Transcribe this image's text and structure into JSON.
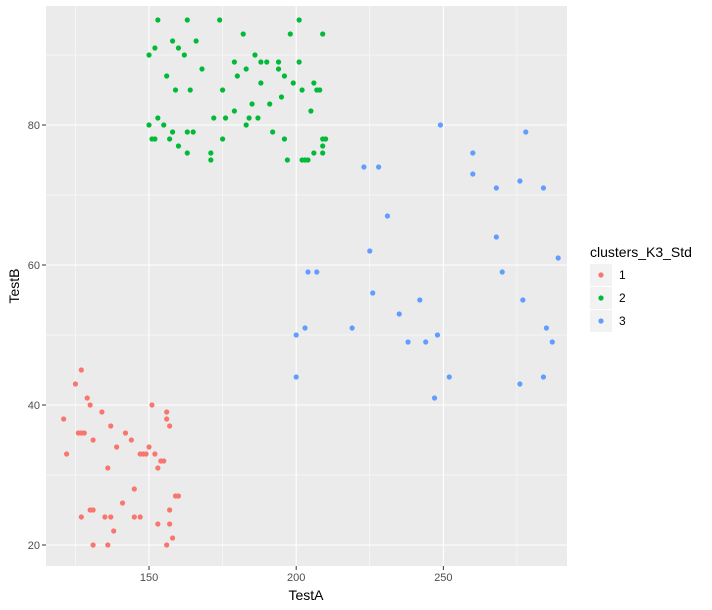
{
  "chart_data": {
    "type": "scatter",
    "xlabel": "TestA",
    "ylabel": "TestB",
    "xlim": [
      115,
      292
    ],
    "ylim": [
      17,
      97
    ],
    "x_ticks": [
      150,
      200,
      250
    ],
    "y_ticks": [
      20,
      40,
      60,
      80
    ],
    "grid": true,
    "legend_position": "right",
    "legend_title": "clusters_K3_Std",
    "series": [
      {
        "name": "1",
        "color": "#F8766D",
        "points": [
          [
            127,
            45
          ],
          [
            125,
            43
          ],
          [
            129,
            41
          ],
          [
            130,
            40
          ],
          [
            134,
            39
          ],
          [
            156,
            39
          ],
          [
            151,
            40
          ],
          [
            156,
            38
          ],
          [
            121,
            38
          ],
          [
            157,
            37
          ],
          [
            137,
            37
          ],
          [
            142,
            36
          ],
          [
            126,
            36
          ],
          [
            127,
            36
          ],
          [
            128,
            36
          ],
          [
            131,
            35
          ],
          [
            144,
            35
          ],
          [
            139,
            34
          ],
          [
            150,
            34
          ],
          [
            122,
            33
          ],
          [
            147,
            33
          ],
          [
            148,
            33
          ],
          [
            149,
            33
          ],
          [
            152,
            33
          ],
          [
            154,
            32
          ],
          [
            155,
            32
          ],
          [
            136,
            31
          ],
          [
            153,
            31
          ],
          [
            145,
            28
          ],
          [
            159,
            27
          ],
          [
            160,
            27
          ],
          [
            141,
            26
          ],
          [
            130,
            25
          ],
          [
            131,
            25
          ],
          [
            157,
            25
          ],
          [
            127,
            24
          ],
          [
            135,
            24
          ],
          [
            137,
            24
          ],
          [
            145,
            24
          ],
          [
            147,
            24
          ],
          [
            153,
            23
          ],
          [
            157,
            23
          ],
          [
            138,
            22
          ],
          [
            158,
            21
          ],
          [
            131,
            20
          ],
          [
            136,
            20
          ],
          [
            156,
            20
          ]
        ]
      },
      {
        "name": "2",
        "color": "#00BA38",
        "points": [
          [
            153,
            95
          ],
          [
            163,
            95
          ],
          [
            174,
            95
          ],
          [
            201,
            95
          ],
          [
            152,
            91
          ],
          [
            160,
            91
          ],
          [
            158,
            92
          ],
          [
            166,
            92
          ],
          [
            198,
            93
          ],
          [
            182,
            93
          ],
          [
            209,
            93
          ],
          [
            190,
            89
          ],
          [
            150,
            90
          ],
          [
            162,
            90
          ],
          [
            186,
            90
          ],
          [
            188,
            89
          ],
          [
            194,
            89
          ],
          [
            201,
            89
          ],
          [
            179,
            89
          ],
          [
            183,
            88
          ],
          [
            168,
            88
          ],
          [
            194,
            88
          ],
          [
            196,
            87
          ],
          [
            156,
            87
          ],
          [
            180,
            87
          ],
          [
            199,
            86
          ],
          [
            206,
            86
          ],
          [
            188,
            86
          ],
          [
            202,
            85
          ],
          [
            208,
            85
          ],
          [
            159,
            85
          ],
          [
            164,
            85
          ],
          [
            175,
            85
          ],
          [
            207,
            85
          ],
          [
            195,
            84
          ],
          [
            185,
            83
          ],
          [
            191,
            83
          ],
          [
            179,
            82
          ],
          [
            205,
            82
          ],
          [
            187,
            81
          ],
          [
            153,
            81
          ],
          [
            172,
            81
          ],
          [
            176,
            81
          ],
          [
            184,
            81
          ],
          [
            155,
            80
          ],
          [
            150,
            80
          ],
          [
            183,
            80
          ],
          [
            192,
            79
          ],
          [
            158,
            79
          ],
          [
            163,
            79
          ],
          [
            165,
            79
          ],
          [
            151,
            78
          ],
          [
            152,
            78
          ],
          [
            157,
            78
          ],
          [
            175,
            78
          ],
          [
            196,
            78
          ],
          [
            209,
            78
          ],
          [
            210,
            78
          ],
          [
            209,
            77
          ],
          [
            160,
            77
          ],
          [
            206,
            76
          ],
          [
            209,
            76
          ],
          [
            171,
            76
          ],
          [
            163,
            76
          ],
          [
            197,
            75
          ],
          [
            171,
            75
          ],
          [
            202,
            75
          ],
          [
            203,
            75
          ],
          [
            204,
            75
          ]
        ]
      },
      {
        "name": "3",
        "color": "#619CFF",
        "points": [
          [
            249,
            80
          ],
          [
            278,
            79
          ],
          [
            260,
            76
          ],
          [
            223,
            74
          ],
          [
            228,
            74
          ],
          [
            260,
            73
          ],
          [
            276,
            72
          ],
          [
            268,
            71
          ],
          [
            284,
            71
          ],
          [
            231,
            67
          ],
          [
            268,
            64
          ],
          [
            225,
            62
          ],
          [
            289,
            61
          ],
          [
            204,
            59
          ],
          [
            207,
            59
          ],
          [
            270,
            59
          ],
          [
            226,
            56
          ],
          [
            242,
            55
          ],
          [
            277,
            55
          ],
          [
            235,
            53
          ],
          [
            203,
            51
          ],
          [
            219,
            51
          ],
          [
            285,
            51
          ],
          [
            200,
            50
          ],
          [
            248,
            50
          ],
          [
            238,
            49
          ],
          [
            244,
            49
          ],
          [
            287,
            49
          ],
          [
            200,
            44
          ],
          [
            252,
            44
          ],
          [
            284,
            44
          ],
          [
            276,
            43
          ],
          [
            247,
            41
          ]
        ]
      }
    ]
  }
}
